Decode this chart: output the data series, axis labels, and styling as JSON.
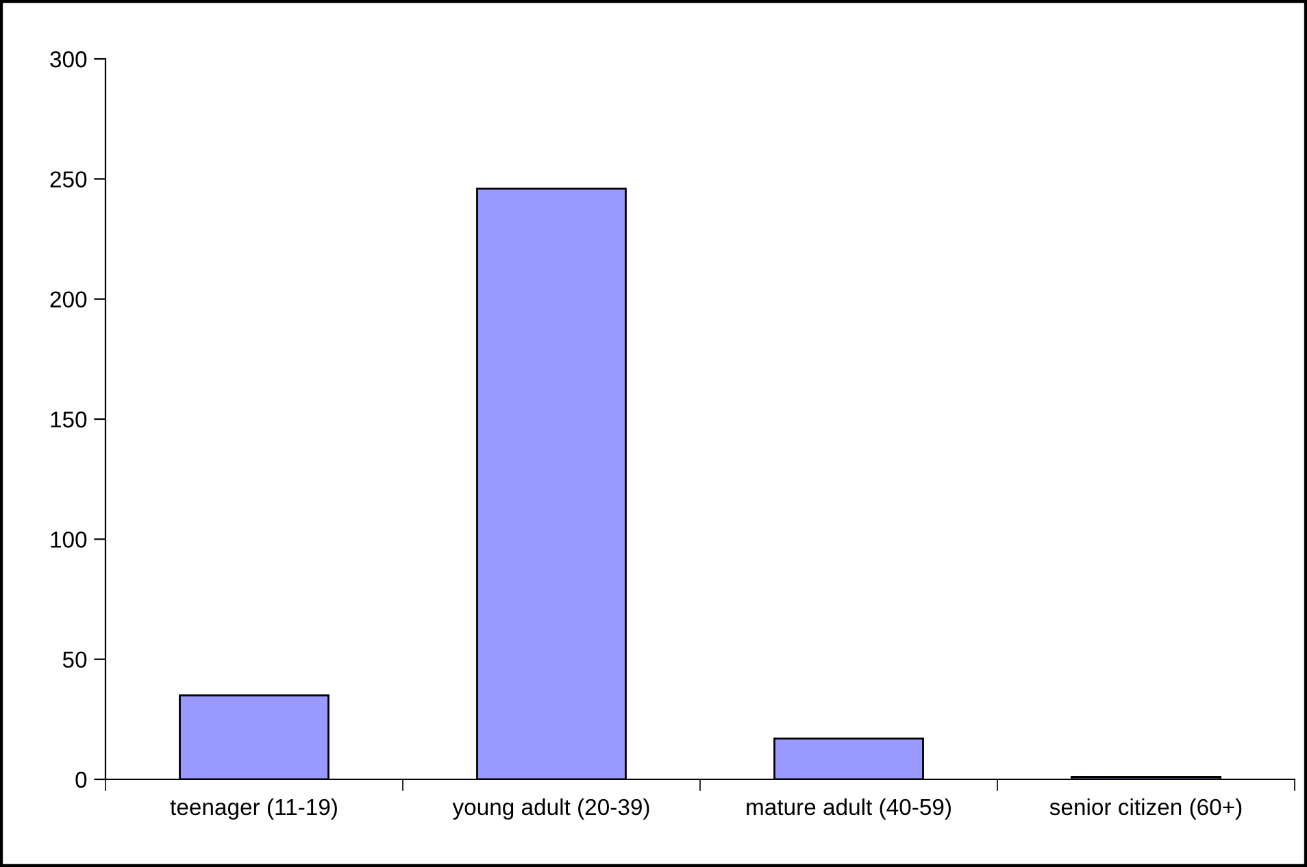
{
  "chart_data": {
    "type": "bar",
    "categories": [
      "teenager (11-19)",
      "young adult (20-39)",
      "mature adult (40-59)",
      "senior citizen (60+)"
    ],
    "values": [
      35,
      246,
      17,
      1
    ],
    "color": "#9999ff",
    "ylim": [
      0,
      300
    ],
    "yticks": [
      0,
      50,
      100,
      150,
      200,
      250,
      300
    ],
    "grid": false,
    "legend": false
  }
}
